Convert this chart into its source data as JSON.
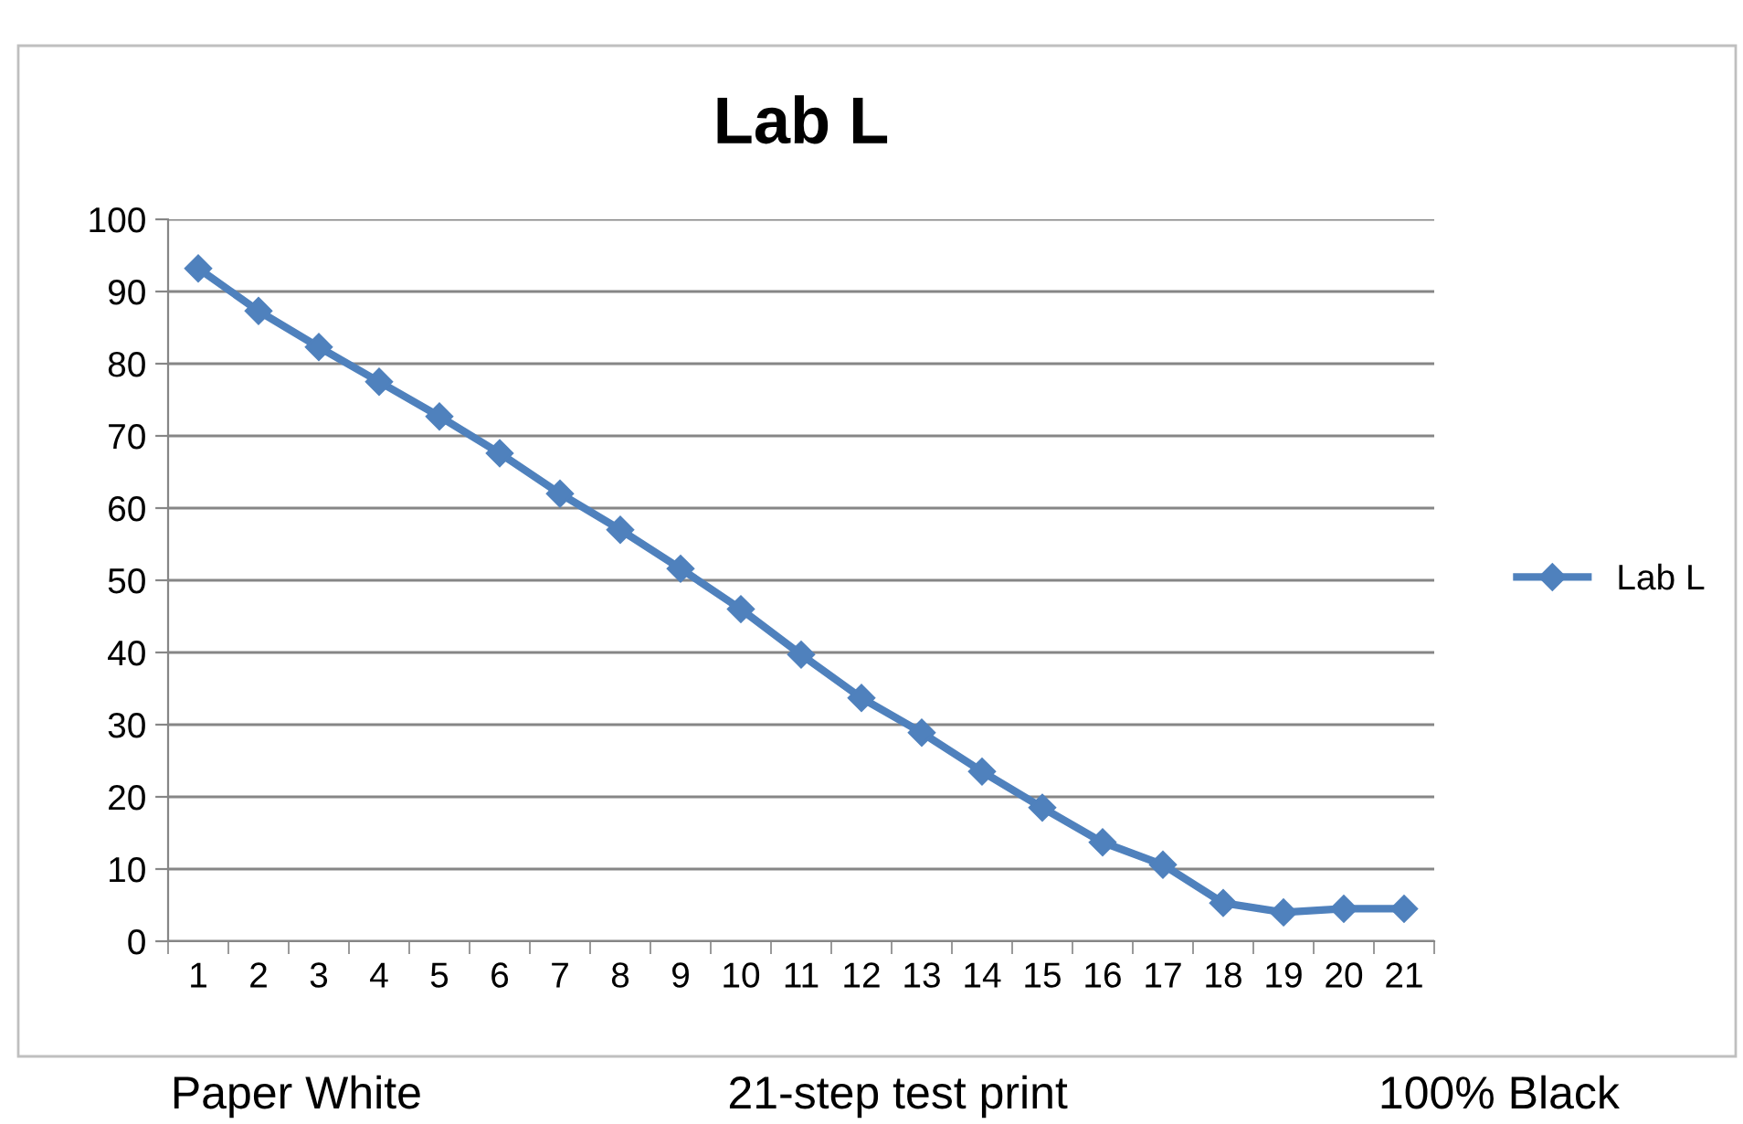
{
  "chart_data": {
    "type": "line",
    "title": "Lab L",
    "categories": [
      "1",
      "2",
      "3",
      "4",
      "5",
      "6",
      "7",
      "8",
      "9",
      "10",
      "11",
      "12",
      "13",
      "14",
      "15",
      "16",
      "17",
      "18",
      "19",
      "20",
      "21"
    ],
    "series": [
      {
        "name": "Lab L",
        "color": "#4f81bd",
        "values": [
          93.2,
          87.3,
          82.3,
          77.5,
          72.7,
          67.6,
          62,
          57,
          51.6,
          46,
          39.7,
          33.7,
          28.9,
          23.5,
          18.5,
          13.7,
          10.6,
          5.3,
          4,
          4.5,
          4.5
        ]
      }
    ],
    "ylim": [
      0,
      100
    ],
    "yticks": [
      0,
      10,
      20,
      30,
      40,
      50,
      60,
      70,
      80,
      90,
      100
    ],
    "grid": "y",
    "legend": "right",
    "marker": "diamond",
    "line_style": "solid",
    "annotations": [
      "Paper White",
      "21-step test print",
      "100% Black"
    ]
  }
}
